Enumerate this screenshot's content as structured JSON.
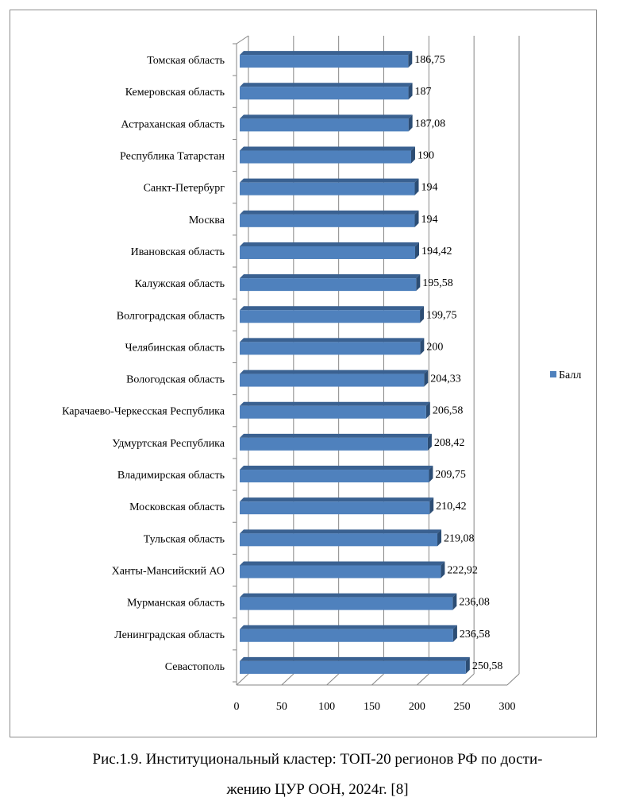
{
  "chart_data": {
    "type": "bar",
    "orientation": "horizontal",
    "style": "3d",
    "categories": [
      "Томская область",
      "Кемеровская область",
      "Астраханская область",
      "Республика Татарстан",
      "Санкт-Петербург",
      "Москва",
      "Ивановская область",
      "Калужская область",
      "Волгоградская область",
      "Челябинская область",
      "Вологодская область",
      "Карачаево-Черкесская Республика",
      "Удмуртская Республика",
      "Владимирская область",
      "Московская область",
      "Тульская область",
      "Ханты-Мансийский АО",
      "Мурманская область",
      "Ленинградская область",
      "Севастополь"
    ],
    "series": [
      {
        "name": "Балл",
        "color": "#4f81bd",
        "values": [
          186.75,
          187,
          187.08,
          190,
          194,
          194,
          194.42,
          195.58,
          199.75,
          200,
          204.33,
          206.58,
          208.42,
          209.75,
          210.42,
          219.08,
          222.92,
          236.08,
          236.58,
          250.58
        ],
        "labels": [
          "186,75",
          "187",
          "187,08",
          "190",
          "194",
          "194",
          "194,42",
          "195,58",
          "199,75",
          "200",
          "204,33",
          "206,58",
          "208,42",
          "209,75",
          "210,42",
          "219,08",
          "222,92",
          "236,08",
          "236,58",
          "250,58"
        ]
      }
    ],
    "xlim": [
      0,
      300
    ],
    "xticks": [
      "0",
      "50",
      "100",
      "150",
      "200",
      "250",
      "300"
    ],
    "grid": true,
    "legend": "right"
  },
  "caption": {
    "line1": "Рис.1.9. Институциональный кластер: ТОП-20 регионов РФ  по дости-",
    "line2": "жению ЦУР ООН, 2024г. [8]"
  }
}
